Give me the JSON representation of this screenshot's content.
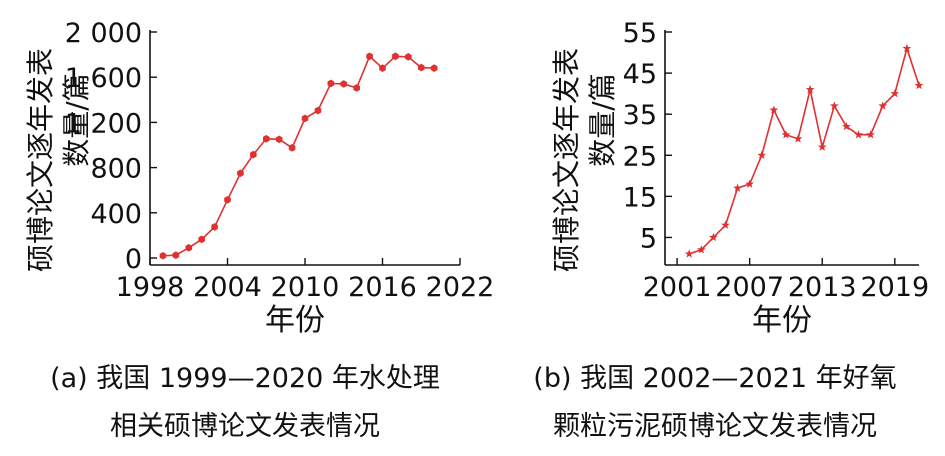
{
  "chart_data": [
    {
      "type": "line",
      "ylabel_lines": [
        "硕博论文逐年发表",
        "数量/篇"
      ],
      "xlabel": "年份",
      "xlim": [
        1998,
        2022
      ],
      "ylim": [
        0,
        2000
      ],
      "xticks": [
        1998,
        2004,
        2010,
        2016,
        2022
      ],
      "yticks": [
        0,
        400,
        800,
        1200,
        1600,
        2000
      ],
      "ytick_labels": [
        "0",
        "400",
        "800",
        "1 200",
        "1 600",
        "2 000"
      ],
      "marker": "hexagon",
      "series": [
        {
          "x": [
            1999,
            2000,
            2001,
            2002,
            2003,
            2004,
            2005,
            2006,
            2007,
            2008,
            2009,
            2010,
            2011,
            2012,
            2013,
            2014,
            2015,
            2016,
            2017,
            2018,
            2019,
            2020
          ],
          "values": [
            20,
            25,
            90,
            165,
            275,
            515,
            750,
            915,
            1055,
            1050,
            975,
            1235,
            1305,
            1545,
            1540,
            1505,
            1785,
            1680,
            1785,
            1780,
            1685,
            1680
          ]
        }
      ],
      "grid": false,
      "color": "#e03030"
    },
    {
      "type": "line",
      "ylabel_lines": [
        "硕博论文逐年发表",
        "数量/篇"
      ],
      "xlabel": "年份",
      "xlim": [
        2000,
        2021
      ],
      "ylim": [
        0,
        55
      ],
      "xticks": [
        2001,
        2007,
        2013,
        2019
      ],
      "yticks": [
        5,
        15,
        25,
        35,
        45,
        55
      ],
      "ytick_labels": [
        "5",
        "15",
        "25",
        "35",
        "45",
        "55"
      ],
      "marker": "star",
      "series": [
        {
          "x": [
            2002,
            2003,
            2004,
            2005,
            2006,
            2007,
            2008,
            2009,
            2010,
            2011,
            2012,
            2013,
            2014,
            2015,
            2016,
            2017,
            2018,
            2019,
            2020,
            2021
          ],
          "values": [
            1,
            2,
            5,
            8,
            17,
            18,
            25,
            36,
            30,
            29,
            41,
            27,
            37,
            32,
            30,
            30,
            37,
            40,
            51,
            42
          ]
        }
      ],
      "grid": false,
      "color": "#e03030"
    }
  ],
  "captions": {
    "a": [
      "(a) 我国 1999—2020 年水处理",
      "相关硕博论文发表情况"
    ],
    "b": [
      "(b) 我国 2002—2021 年好氧",
      "颗粒污泥硕博论文发表情况"
    ]
  }
}
